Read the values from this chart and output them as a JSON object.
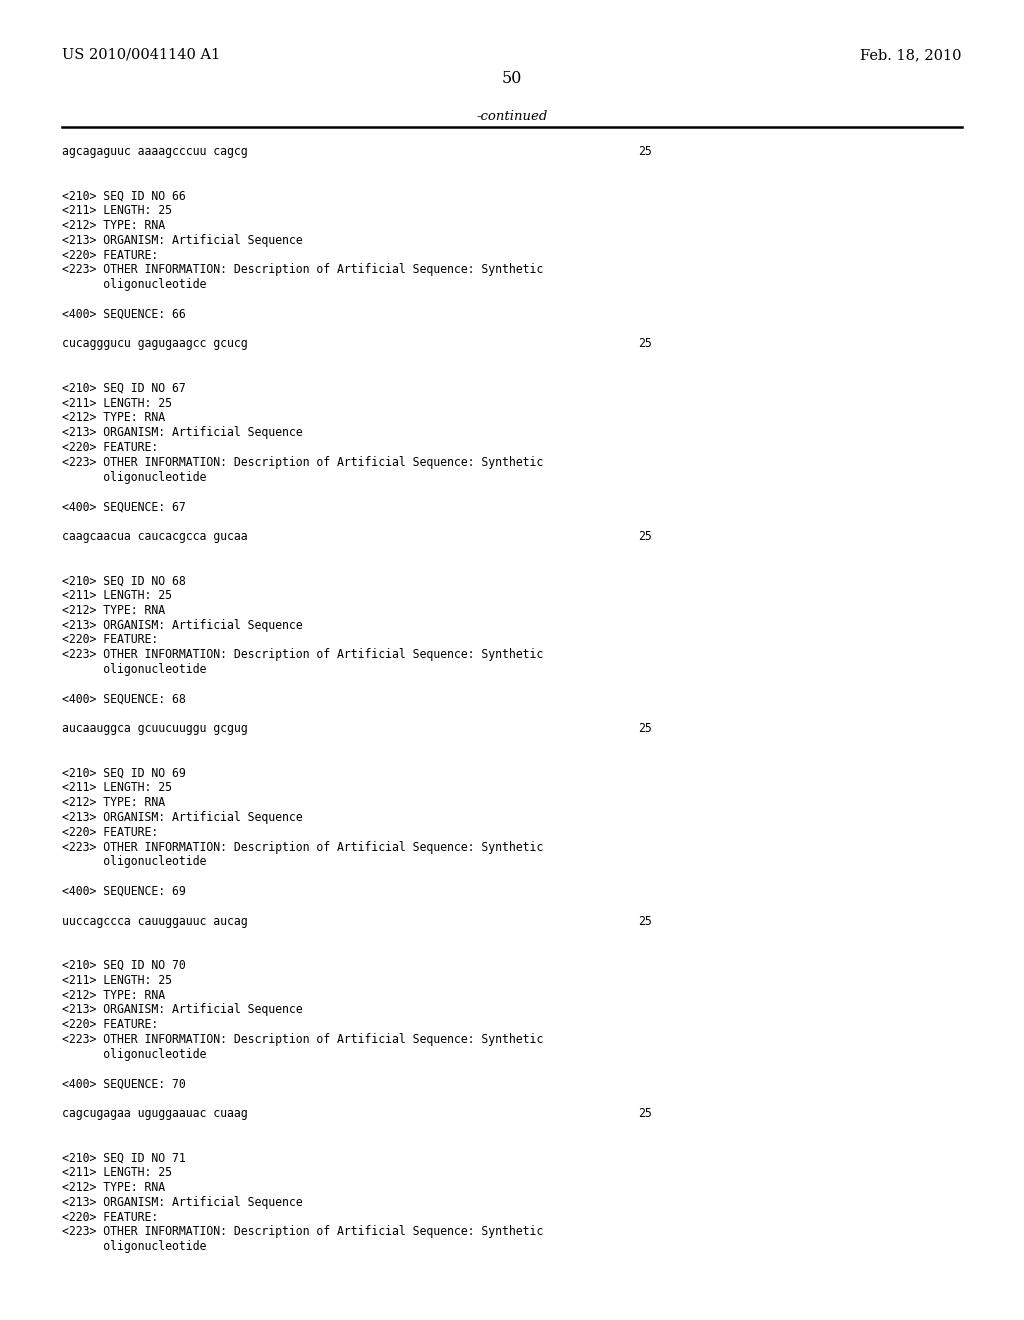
{
  "bg_color": "#ffffff",
  "header_left": "US 2010/0041140 A1",
  "header_right": "Feb. 18, 2010",
  "page_number": "50",
  "continued_label": "-continued",
  "content": [
    {
      "text": "agcagaguuc aaaagcccuu cagcg",
      "num": "25"
    },
    {
      "text": ""
    },
    {
      "text": ""
    },
    {
      "text": "<210> SEQ ID NO 66"
    },
    {
      "text": "<211> LENGTH: 25"
    },
    {
      "text": "<212> TYPE: RNA"
    },
    {
      "text": "<213> ORGANISM: Artificial Sequence"
    },
    {
      "text": "<220> FEATURE:"
    },
    {
      "text": "<223> OTHER INFORMATION: Description of Artificial Sequence: Synthetic"
    },
    {
      "text": "      oligonucleotide"
    },
    {
      "text": ""
    },
    {
      "text": "<400> SEQUENCE: 66"
    },
    {
      "text": ""
    },
    {
      "text": "cucagggucu gagugaagcc gcucg",
      "num": "25"
    },
    {
      "text": ""
    },
    {
      "text": ""
    },
    {
      "text": "<210> SEQ ID NO 67"
    },
    {
      "text": "<211> LENGTH: 25"
    },
    {
      "text": "<212> TYPE: RNA"
    },
    {
      "text": "<213> ORGANISM: Artificial Sequence"
    },
    {
      "text": "<220> FEATURE:"
    },
    {
      "text": "<223> OTHER INFORMATION: Description of Artificial Sequence: Synthetic"
    },
    {
      "text": "      oligonucleotide"
    },
    {
      "text": ""
    },
    {
      "text": "<400> SEQUENCE: 67"
    },
    {
      "text": ""
    },
    {
      "text": "caagcaacua caucacgcca gucaa",
      "num": "25"
    },
    {
      "text": ""
    },
    {
      "text": ""
    },
    {
      "text": "<210> SEQ ID NO 68"
    },
    {
      "text": "<211> LENGTH: 25"
    },
    {
      "text": "<212> TYPE: RNA"
    },
    {
      "text": "<213> ORGANISM: Artificial Sequence"
    },
    {
      "text": "<220> FEATURE:"
    },
    {
      "text": "<223> OTHER INFORMATION: Description of Artificial Sequence: Synthetic"
    },
    {
      "text": "      oligonucleotide"
    },
    {
      "text": ""
    },
    {
      "text": "<400> SEQUENCE: 68"
    },
    {
      "text": ""
    },
    {
      "text": "aucaauggca gcuucuuggu gcgug",
      "num": "25"
    },
    {
      "text": ""
    },
    {
      "text": ""
    },
    {
      "text": "<210> SEQ ID NO 69"
    },
    {
      "text": "<211> LENGTH: 25"
    },
    {
      "text": "<212> TYPE: RNA"
    },
    {
      "text": "<213> ORGANISM: Artificial Sequence"
    },
    {
      "text": "<220> FEATURE:"
    },
    {
      "text": "<223> OTHER INFORMATION: Description of Artificial Sequence: Synthetic"
    },
    {
      "text": "      oligonucleotide"
    },
    {
      "text": ""
    },
    {
      "text": "<400> SEQUENCE: 69"
    },
    {
      "text": ""
    },
    {
      "text": "uuccagccca cauuggauuc aucag",
      "num": "25"
    },
    {
      "text": ""
    },
    {
      "text": ""
    },
    {
      "text": "<210> SEQ ID NO 70"
    },
    {
      "text": "<211> LENGTH: 25"
    },
    {
      "text": "<212> TYPE: RNA"
    },
    {
      "text": "<213> ORGANISM: Artificial Sequence"
    },
    {
      "text": "<220> FEATURE:"
    },
    {
      "text": "<223> OTHER INFORMATION: Description of Artificial Sequence: Synthetic"
    },
    {
      "text": "      oligonucleotide"
    },
    {
      "text": ""
    },
    {
      "text": "<400> SEQUENCE: 70"
    },
    {
      "text": ""
    },
    {
      "text": "cagcugagaa uguggaauac cuaag",
      "num": "25"
    },
    {
      "text": ""
    },
    {
      "text": ""
    },
    {
      "text": "<210> SEQ ID NO 71"
    },
    {
      "text": "<211> LENGTH: 25"
    },
    {
      "text": "<212> TYPE: RNA"
    },
    {
      "text": "<213> ORGANISM: Artificial Sequence"
    },
    {
      "text": "<220> FEATURE:"
    },
    {
      "text": "<223> OTHER INFORMATION: Description of Artificial Sequence: Synthetic"
    },
    {
      "text": "      oligonucleotide"
    }
  ]
}
